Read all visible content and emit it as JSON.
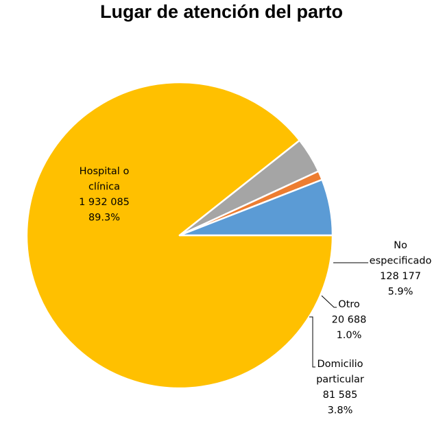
{
  "chart_data": {
    "type": "pie",
    "title": "Lugar de atención del parto",
    "slices": [
      {
        "id": "hospital",
        "label_lines": [
          "Hospital o",
          "clínica"
        ],
        "value_text": "1 932 085",
        "value": 1932085,
        "percent_text": "89.3%",
        "percent": 89.3,
        "color": "#FFC000"
      },
      {
        "id": "domicilio",
        "label_lines": [
          "Domicilio",
          "particular"
        ],
        "value_text": "81 585",
        "value": 81585,
        "percent_text": "3.8%",
        "percent": 3.8,
        "color": "#A5A5A5"
      },
      {
        "id": "otro",
        "label_lines": [
          "Otro"
        ],
        "value_text": "20 688",
        "value": 20688,
        "percent_text": "1.0%",
        "percent": 1.0,
        "color": "#ED7D31"
      },
      {
        "id": "no-especificado",
        "label_lines": [
          "No",
          "especificado"
        ],
        "value_text": "128 177",
        "value": 128177,
        "percent_text": "5.9%",
        "percent": 5.9,
        "color": "#5B9BD5"
      }
    ],
    "legend": "none",
    "slice_border_color": "#FFFFFF",
    "leader_line_color": "#000000"
  }
}
